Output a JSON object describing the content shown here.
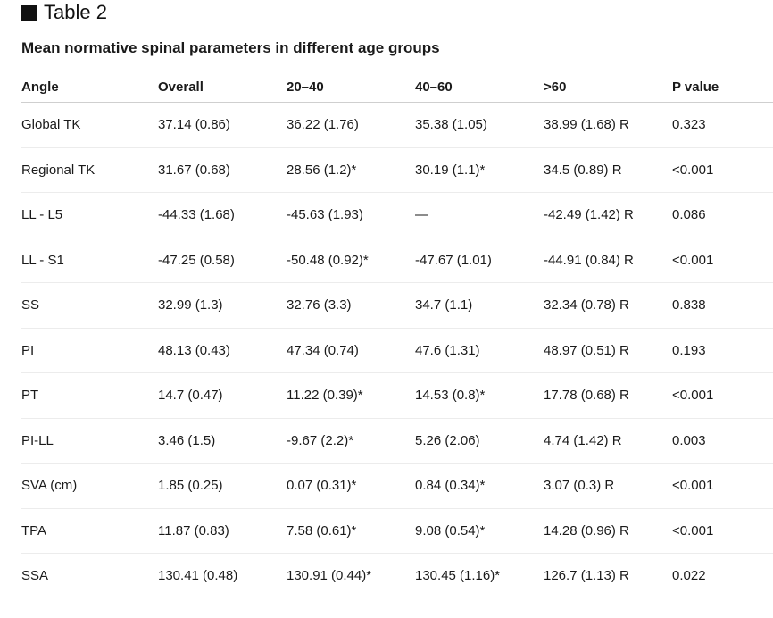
{
  "title": "Table 2",
  "caption": "Mean normative spinal parameters in different age groups",
  "columns": [
    "Angle",
    "Overall",
    "20–40",
    "40–60",
    ">60",
    "P value"
  ],
  "rows": [
    [
      "Global TK",
      "37.14 (0.86)",
      "36.22 (1.76)",
      "35.38 (1.05)",
      "38.99 (1.68) R",
      "0.323"
    ],
    [
      "Regional TK",
      "31.67 (0.68)",
      "28.56 (1.2)*",
      "30.19 (1.1)*",
      "34.5 (0.89) R",
      "<0.001"
    ],
    [
      "LL - L5",
      "-44.33 (1.68)",
      "-45.63 (1.93)",
      "—",
      "-42.49 (1.42) R",
      "0.086"
    ],
    [
      "LL - S1",
      "-47.25 (0.58)",
      "-50.48 (0.92)*",
      "-47.67 (1.01)",
      "-44.91 (0.84) R",
      "<0.001"
    ],
    [
      "SS",
      "32.99 (1.3)",
      "32.76 (3.3)",
      "34.7 (1.1)",
      "32.34 (0.78) R",
      "0.838"
    ],
    [
      "PI",
      "48.13 (0.43)",
      "47.34 (0.74)",
      "47.6 (1.31)",
      "48.97 (0.51) R",
      "0.193"
    ],
    [
      "PT",
      "14.7 (0.47)",
      "11.22 (0.39)*",
      "14.53 (0.8)*",
      "17.78 (0.68) R",
      "<0.001"
    ],
    [
      "PI-LL",
      "3.46 (1.5)",
      "-9.67 (2.2)*",
      "5.26 (2.06)",
      "4.74 (1.42) R",
      "0.003"
    ],
    [
      "SVA (cm)",
      "1.85 (0.25)",
      "0.07 (0.31)*",
      "0.84 (0.34)*",
      "3.07 (0.3) R",
      "<0.001"
    ],
    [
      "TPA",
      "11.87 (0.83)",
      "7.58 (0.61)*",
      "9.08 (0.54)*",
      "14.28 (0.96) R",
      "<0.001"
    ],
    [
      "SSA",
      "130.41 (0.48)",
      "130.91 (0.44)*",
      "130.45 (1.16)*",
      "126.7 (1.13) R",
      "0.022"
    ]
  ]
}
